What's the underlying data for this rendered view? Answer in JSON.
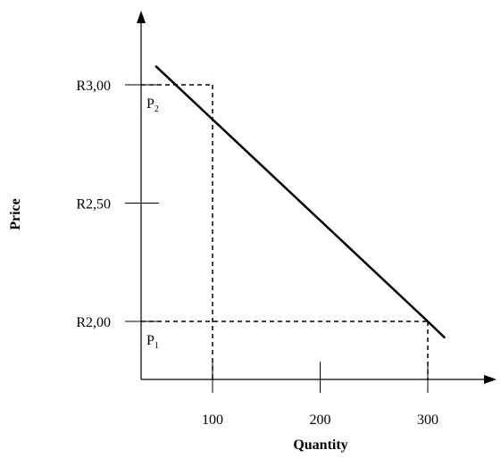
{
  "chart_data": {
    "type": "line",
    "title": "",
    "xlabel": "Quantity",
    "ylabel": "Price",
    "xlim": [
      0,
      340
    ],
    "ylim": [
      1.7,
      3.3
    ],
    "x_ticks": [
      100,
      200,
      300
    ],
    "x_tick_labels": [
      "100",
      "200",
      "300"
    ],
    "y_ticks": [
      2.0,
      2.5,
      3.0
    ],
    "y_tick_labels": [
      "R2,00",
      "R2,50",
      "R3,00"
    ],
    "grid": false,
    "series": [
      {
        "x": [
          47,
          300,
          316
        ],
        "y": [
          3.08,
          2.0,
          1.93
        ]
      }
    ],
    "reference_points": [
      {
        "label": "P",
        "subscript": "2",
        "x": 100,
        "y": 3.0
      },
      {
        "label": "P",
        "subscript": "1",
        "x": 300,
        "y": 2.0
      }
    ],
    "colors": {
      "line": "#000000",
      "axis": "#000000",
      "guide": "#000000"
    }
  }
}
